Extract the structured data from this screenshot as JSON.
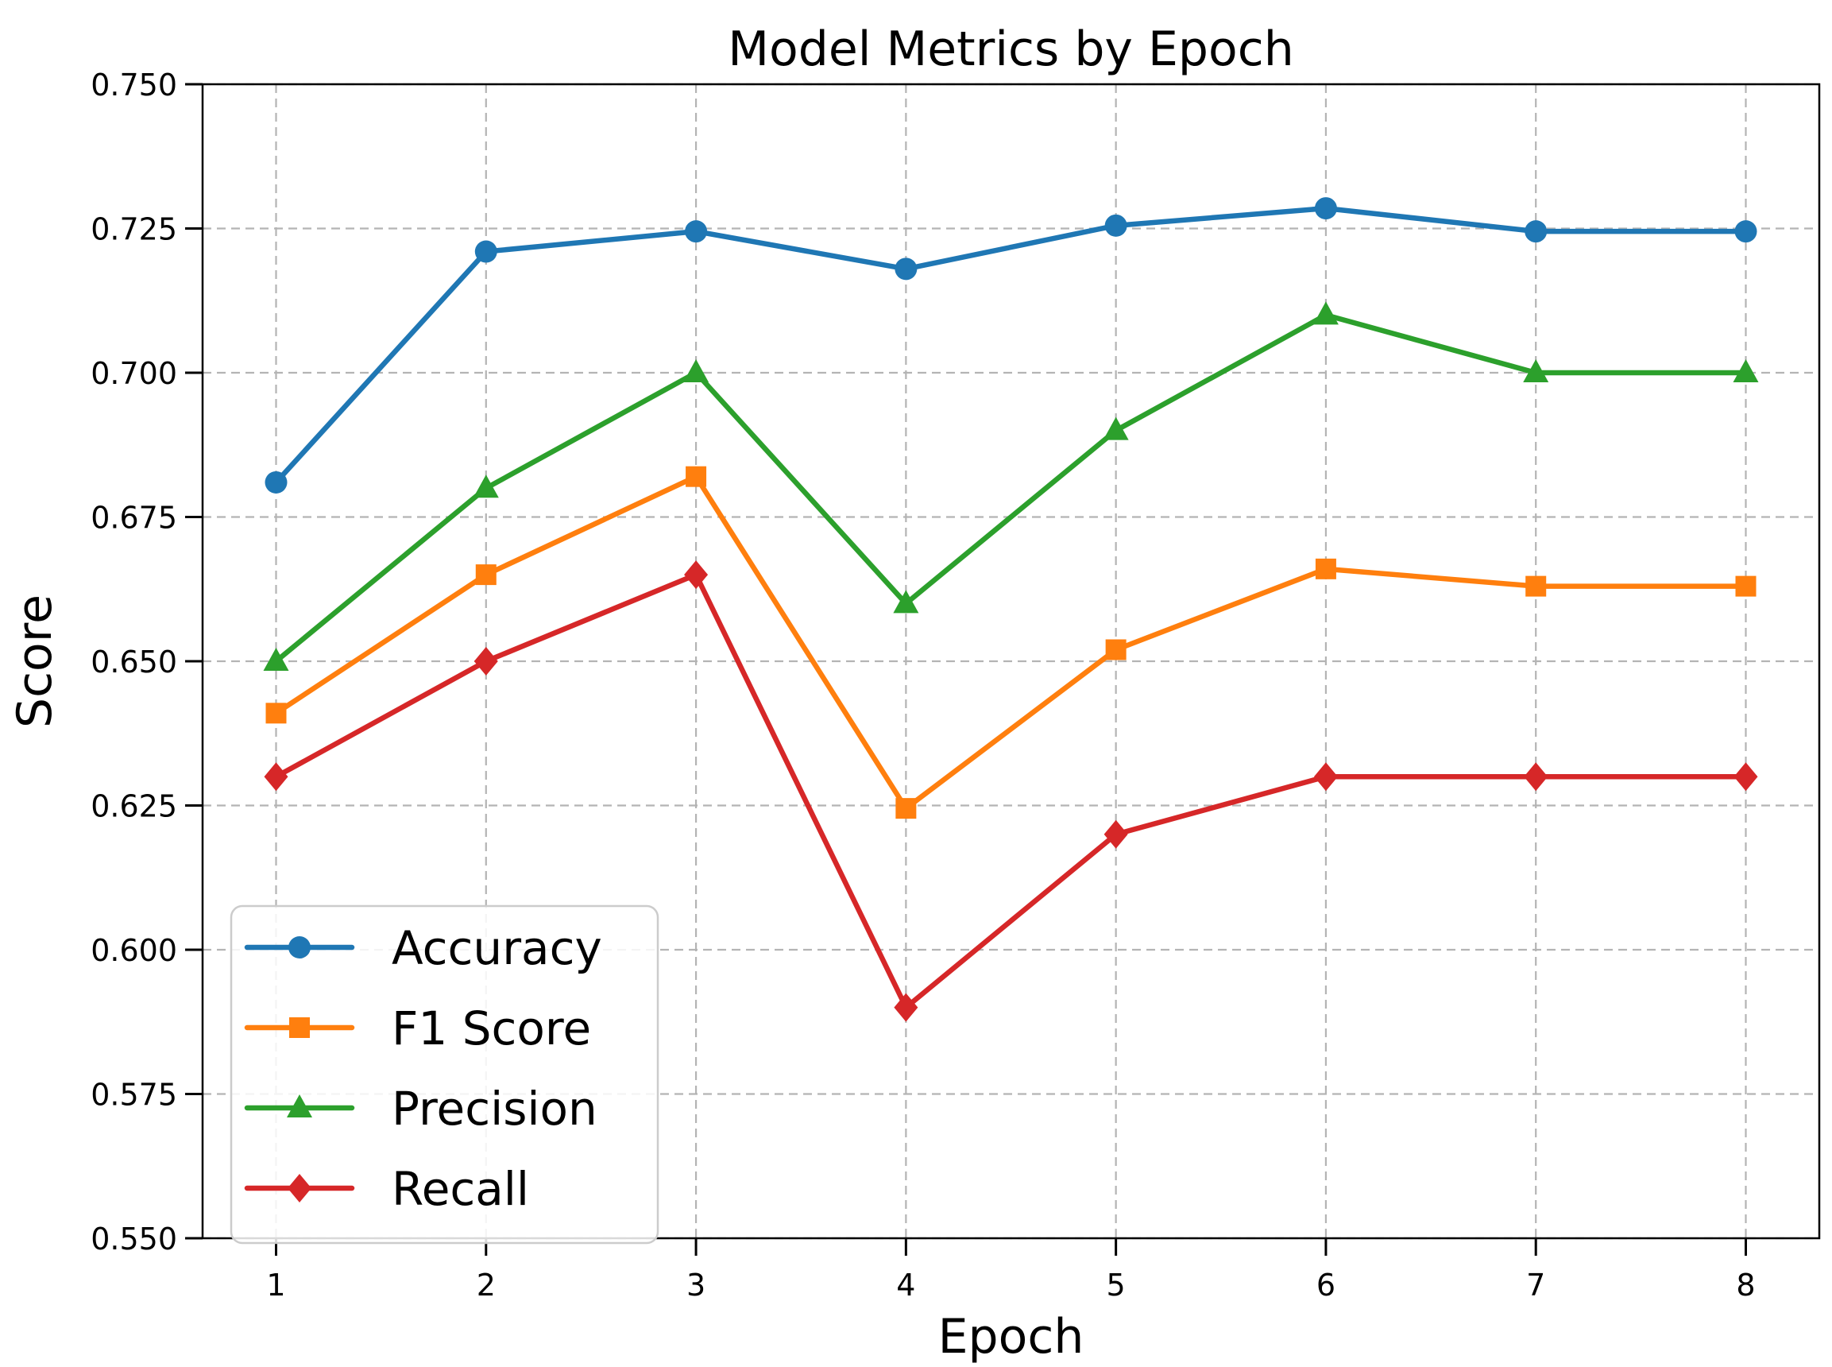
{
  "figure": {
    "title": "Model Metrics by Epoch",
    "xlabel": "Epoch",
    "ylabel": "Score"
  },
  "chart_data": {
    "type": "line",
    "title": "Model Metrics by Epoch",
    "xlabel": "Epoch",
    "ylabel": "Score",
    "x": [
      1,
      2,
      3,
      4,
      5,
      6,
      7,
      8
    ],
    "x_tick_labels": [
      "1",
      "2",
      "3",
      "4",
      "5",
      "6",
      "7",
      "8"
    ],
    "y_ticks": [
      0.55,
      0.575,
      0.6,
      0.625,
      0.65,
      0.675,
      0.7,
      0.725,
      0.75
    ],
    "y_tick_labels": [
      "0.550",
      "0.575",
      "0.600",
      "0.625",
      "0.650",
      "0.675",
      "0.700",
      "0.725",
      "0.750"
    ],
    "xlim": [
      0.65,
      8.35
    ],
    "ylim": [
      0.55,
      0.75
    ],
    "grid": true,
    "grid_style": "dashed",
    "legend_position": "lower-left",
    "series": [
      {
        "name": "Accuracy",
        "color": "#1f77b4",
        "marker": "circle",
        "values": [
          0.681,
          0.721,
          0.7245,
          0.718,
          0.7255,
          0.7285,
          0.7245,
          0.7245
        ]
      },
      {
        "name": "F1 Score",
        "color": "#ff7f0e",
        "marker": "square",
        "values": [
          0.641,
          0.665,
          0.682,
          0.6245,
          0.652,
          0.666,
          0.663,
          0.663
        ]
      },
      {
        "name": "Precision",
        "color": "#2ca02c",
        "marker": "triangle-up",
        "values": [
          0.65,
          0.68,
          0.7,
          0.66,
          0.69,
          0.71,
          0.7,
          0.7
        ]
      },
      {
        "name": "Recall",
        "color": "#d62728",
        "marker": "diamond",
        "values": [
          0.63,
          0.65,
          0.665,
          0.59,
          0.62,
          0.63,
          0.63,
          0.63
        ]
      }
    ]
  },
  "style": {
    "background": "#ffffff",
    "axis_color": "#000000",
    "text_color": "#000000",
    "grid_color": "#b4b4b4",
    "legend_border_color": "#cccccc",
    "legend_fill": "#ffffff"
  }
}
